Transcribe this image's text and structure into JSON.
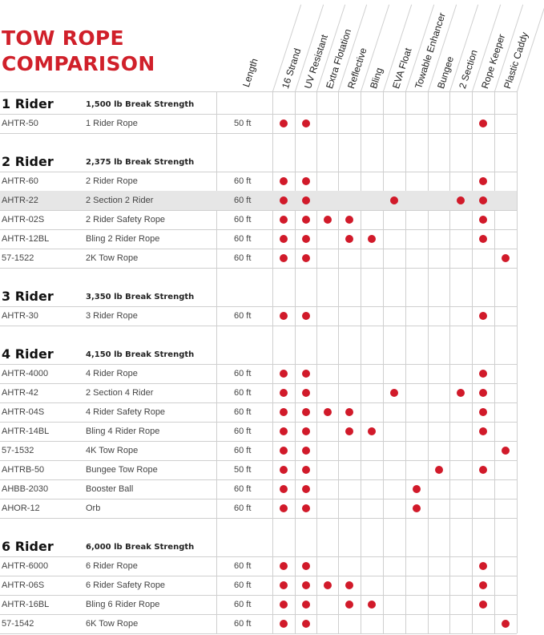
{
  "title": [
    "TOW ROPE",
    "COMPARISON"
  ],
  "length_header": "Length",
  "features": [
    "16 Strand",
    "UV Resistant",
    "Extra Flotation",
    "Reflective",
    "Bling",
    "EVA Float",
    "Towable Enhancer",
    "Bungee",
    "2 Section",
    "Rope Keeper",
    "Plastic Caddy"
  ],
  "colors": {
    "accent": "#d0202a",
    "dot": "#d11a2a",
    "highlight_row": "#e6e6e6"
  },
  "sections": [
    {
      "rider": "1 Rider",
      "strength": "1,500 lb Break Strength",
      "rows": [
        {
          "sku": "AHTR-50",
          "name": "1 Rider Rope",
          "length": "50 ft",
          "features": [
            1,
            1,
            0,
            0,
            0,
            0,
            0,
            0,
            0,
            1,
            0
          ]
        }
      ]
    },
    {
      "rider": "2 Rider",
      "strength": "2,375 lb Break Strength",
      "rows": [
        {
          "sku": "AHTR-60",
          "name": "2 Rider Rope",
          "length": "60 ft",
          "features": [
            1,
            1,
            0,
            0,
            0,
            0,
            0,
            0,
            0,
            1,
            0
          ]
        },
        {
          "sku": "AHTR-22",
          "name": "2 Section 2 Rider",
          "length": "60 ft",
          "highlight": true,
          "features": [
            1,
            1,
            0,
            0,
            0,
            1,
            0,
            0,
            1,
            1,
            0
          ]
        },
        {
          "sku": "AHTR-02S",
          "name": "2 Rider Safety Rope",
          "length": "60 ft",
          "features": [
            1,
            1,
            1,
            1,
            0,
            0,
            0,
            0,
            0,
            1,
            0
          ]
        },
        {
          "sku": "AHTR-12BL",
          "name": "Bling 2 Rider Rope",
          "length": "60 ft",
          "features": [
            1,
            1,
            0,
            1,
            1,
            0,
            0,
            0,
            0,
            1,
            0
          ]
        },
        {
          "sku": "57-1522",
          "name": "2K Tow Rope",
          "length": "60 ft",
          "features": [
            1,
            1,
            0,
            0,
            0,
            0,
            0,
            0,
            0,
            0,
            1
          ]
        }
      ]
    },
    {
      "rider": "3 Rider",
      "strength": "3,350 lb Break Strength",
      "rows": [
        {
          "sku": "AHTR-30",
          "name": "3 Rider Rope",
          "length": "60 ft",
          "features": [
            1,
            1,
            0,
            0,
            0,
            0,
            0,
            0,
            0,
            1,
            0
          ]
        }
      ]
    },
    {
      "rider": "4 Rider",
      "strength": "4,150 lb Break Strength",
      "rows": [
        {
          "sku": "AHTR-4000",
          "name": "4 Rider Rope",
          "length": "60 ft",
          "features": [
            1,
            1,
            0,
            0,
            0,
            0,
            0,
            0,
            0,
            1,
            0
          ]
        },
        {
          "sku": "AHTR-42",
          "name": "2 Section 4 Rider",
          "length": "60 ft",
          "features": [
            1,
            1,
            0,
            0,
            0,
            1,
            0,
            0,
            1,
            1,
            0
          ]
        },
        {
          "sku": "AHTR-04S",
          "name": "4 Rider Safety Rope",
          "length": "60 ft",
          "features": [
            1,
            1,
            1,
            1,
            0,
            0,
            0,
            0,
            0,
            1,
            0
          ]
        },
        {
          "sku": "AHTR-14BL",
          "name": "Bling 4 Rider Rope",
          "length": "60 ft",
          "features": [
            1,
            1,
            0,
            1,
            1,
            0,
            0,
            0,
            0,
            1,
            0
          ]
        },
        {
          "sku": "57-1532",
          "name": "4K Tow Rope",
          "length": "60 ft",
          "features": [
            1,
            1,
            0,
            0,
            0,
            0,
            0,
            0,
            0,
            0,
            1
          ]
        },
        {
          "sku": "AHTRB-50",
          "name": "Bungee Tow Rope",
          "length": "50 ft",
          "features": [
            1,
            1,
            0,
            0,
            0,
            0,
            0,
            1,
            0,
            1,
            0
          ]
        },
        {
          "sku": "AHBB-2030",
          "name": "Booster Ball",
          "length": "60 ft",
          "features": [
            1,
            1,
            0,
            0,
            0,
            0,
            1,
            0,
            0,
            0,
            0
          ]
        },
        {
          "sku": "AHOR-12",
          "name": "Orb",
          "length": "60 ft",
          "features": [
            1,
            1,
            0,
            0,
            0,
            0,
            1,
            0,
            0,
            0,
            0
          ]
        }
      ]
    },
    {
      "rider": "6 Rider",
      "strength": "6,000 lb Break Strength",
      "rows": [
        {
          "sku": "AHTR-6000",
          "name": "6 Rider Rope",
          "length": "60 ft",
          "features": [
            1,
            1,
            0,
            0,
            0,
            0,
            0,
            0,
            0,
            1,
            0
          ]
        },
        {
          "sku": "AHTR-06S",
          "name": "6 Rider Safety Rope",
          "length": "60 ft",
          "features": [
            1,
            1,
            1,
            1,
            0,
            0,
            0,
            0,
            0,
            1,
            0
          ]
        },
        {
          "sku": "AHTR-16BL",
          "name": "Bling 6 Rider Rope",
          "length": "60 ft",
          "features": [
            1,
            1,
            0,
            1,
            1,
            0,
            0,
            0,
            0,
            1,
            0
          ]
        },
        {
          "sku": "57-1542",
          "name": "6K Tow Rope",
          "length": "60 ft",
          "features": [
            1,
            1,
            0,
            0,
            0,
            0,
            0,
            0,
            0,
            0,
            1
          ]
        }
      ]
    }
  ]
}
